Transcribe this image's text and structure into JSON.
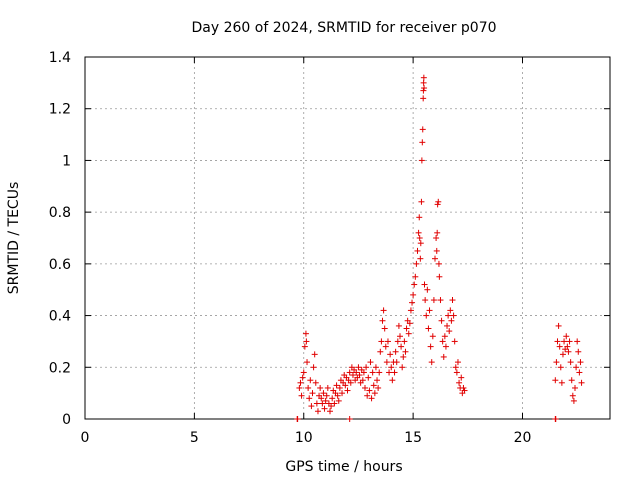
{
  "chart_data": {
    "type": "scatter",
    "title": "Day 260 of 2024, SRMTID for receiver p070",
    "xlabel": "GPS time / hours",
    "ylabel": "SRMTID / TECUs",
    "xlim": [
      0,
      24
    ],
    "ylim": [
      0,
      1.4
    ],
    "xticks": [
      0,
      5,
      10,
      15,
      20
    ],
    "xtick_labels": [
      "0",
      "5",
      "10",
      "15",
      "20"
    ],
    "yticks": [
      0,
      0.2,
      0.4,
      0.6,
      0.8,
      1.0,
      1.2,
      1.4
    ],
    "ytick_labels": [
      "0",
      "0.2",
      "0.4",
      "0.6",
      "0.8",
      "1",
      "1.2",
      "1.4"
    ],
    "grid": true,
    "marker": "+",
    "color": "#e00000",
    "series": [
      {
        "name": "SRMTID",
        "points": [
          [
            9.7,
            0.0
          ],
          [
            9.72,
            0.0
          ],
          [
            21.5,
            0.0
          ],
          [
            21.52,
            0.0
          ],
          [
            12.1,
            0.0
          ],
          [
            9.8,
            0.12
          ],
          [
            9.85,
            0.14
          ],
          [
            9.9,
            0.09
          ],
          [
            9.95,
            0.16
          ],
          [
            10.0,
            0.18
          ],
          [
            10.05,
            0.28
          ],
          [
            10.1,
            0.33
          ],
          [
            10.12,
            0.3
          ],
          [
            10.15,
            0.22
          ],
          [
            10.2,
            0.12
          ],
          [
            10.25,
            0.08
          ],
          [
            10.3,
            0.15
          ],
          [
            10.35,
            0.05
          ],
          [
            10.4,
            0.1
          ],
          [
            10.45,
            0.2
          ],
          [
            10.5,
            0.25
          ],
          [
            10.55,
            0.14
          ],
          [
            10.6,
            0.06
          ],
          [
            10.65,
            0.03
          ],
          [
            10.7,
            0.09
          ],
          [
            10.75,
            0.12
          ],
          [
            10.8,
            0.08
          ],
          [
            10.85,
            0.06
          ],
          [
            10.9,
            0.1
          ],
          [
            10.95,
            0.04
          ],
          [
            11.0,
            0.07
          ],
          [
            11.05,
            0.09
          ],
          [
            11.1,
            0.12
          ],
          [
            11.15,
            0.06
          ],
          [
            11.2,
            0.03
          ],
          [
            11.25,
            0.05
          ],
          [
            11.3,
            0.08
          ],
          [
            11.35,
            0.11
          ],
          [
            11.4,
            0.06
          ],
          [
            11.45,
            0.1
          ],
          [
            11.5,
            0.13
          ],
          [
            11.55,
            0.09
          ],
          [
            11.6,
            0.07
          ],
          [
            11.65,
            0.12
          ],
          [
            11.7,
            0.15
          ],
          [
            11.75,
            0.1
          ],
          [
            11.8,
            0.14
          ],
          [
            11.85,
            0.17
          ],
          [
            11.9,
            0.13
          ],
          [
            11.95,
            0.16
          ],
          [
            12.0,
            0.11
          ],
          [
            12.05,
            0.15
          ],
          [
            12.1,
            0.18
          ],
          [
            12.15,
            0.14
          ],
          [
            12.2,
            0.2
          ],
          [
            12.25,
            0.17
          ],
          [
            12.3,
            0.19
          ],
          [
            12.35,
            0.15
          ],
          [
            12.4,
            0.18
          ],
          [
            12.45,
            0.16
          ],
          [
            12.5,
            0.2
          ],
          [
            12.55,
            0.17
          ],
          [
            12.6,
            0.14
          ],
          [
            12.65,
            0.19
          ],
          [
            12.7,
            0.15
          ],
          [
            12.75,
            0.18
          ],
          [
            12.8,
            0.12
          ],
          [
            12.85,
            0.2
          ],
          [
            12.9,
            0.09
          ],
          [
            12.95,
            0.16
          ],
          [
            13.0,
            0.11
          ],
          [
            13.05,
            0.22
          ],
          [
            13.1,
            0.08
          ],
          [
            13.15,
            0.18
          ],
          [
            13.2,
            0.13
          ],
          [
            13.25,
            0.1
          ],
          [
            13.3,
            0.2
          ],
          [
            13.35,
            0.15
          ],
          [
            13.4,
            0.12
          ],
          [
            13.45,
            0.18
          ],
          [
            13.5,
            0.26
          ],
          [
            13.55,
            0.3
          ],
          [
            13.6,
            0.38
          ],
          [
            13.65,
            0.42
          ],
          [
            13.7,
            0.35
          ],
          [
            13.75,
            0.28
          ],
          [
            13.8,
            0.22
          ],
          [
            13.85,
            0.3
          ],
          [
            13.9,
            0.18
          ],
          [
            13.95,
            0.25
          ],
          [
            14.0,
            0.2
          ],
          [
            14.05,
            0.15
          ],
          [
            14.1,
            0.22
          ],
          [
            14.15,
            0.18
          ],
          [
            14.2,
            0.26
          ],
          [
            14.25,
            0.22
          ],
          [
            14.3,
            0.3
          ],
          [
            14.35,
            0.36
          ],
          [
            14.4,
            0.32
          ],
          [
            14.45,
            0.28
          ],
          [
            14.5,
            0.2
          ],
          [
            14.55,
            0.24
          ],
          [
            14.6,
            0.3
          ],
          [
            14.65,
            0.26
          ],
          [
            14.7,
            0.35
          ],
          [
            14.75,
            0.38
          ],
          [
            14.8,
            0.33
          ],
          [
            14.85,
            0.37
          ],
          [
            14.9,
            0.42
          ],
          [
            14.95,
            0.45
          ],
          [
            15.0,
            0.48
          ],
          [
            15.05,
            0.52
          ],
          [
            15.1,
            0.55
          ],
          [
            15.15,
            0.6
          ],
          [
            15.2,
            0.65
          ],
          [
            15.25,
            0.72
          ],
          [
            15.28,
            0.78
          ],
          [
            15.3,
            0.7
          ],
          [
            15.33,
            0.62
          ],
          [
            15.35,
            0.68
          ],
          [
            15.38,
            0.84
          ],
          [
            15.4,
            1.0
          ],
          [
            15.42,
            1.07
          ],
          [
            15.44,
            1.12
          ],
          [
            15.46,
            1.24
          ],
          [
            15.47,
            1.27
          ],
          [
            15.48,
            1.3
          ],
          [
            15.49,
            1.32
          ],
          [
            15.5,
            1.28
          ],
          [
            15.52,
            0.52
          ],
          [
            15.55,
            0.46
          ],
          [
            15.6,
            0.4
          ],
          [
            15.65,
            0.5
          ],
          [
            15.7,
            0.35
          ],
          [
            15.75,
            0.42
          ],
          [
            15.8,
            0.28
          ],
          [
            15.85,
            0.22
          ],
          [
            15.9,
            0.32
          ],
          [
            15.95,
            0.46
          ],
          [
            16.0,
            0.62
          ],
          [
            16.05,
            0.7
          ],
          [
            16.08,
            0.65
          ],
          [
            16.1,
            0.72
          ],
          [
            16.12,
            0.83
          ],
          [
            16.15,
            0.84
          ],
          [
            16.18,
            0.6
          ],
          [
            16.2,
            0.55
          ],
          [
            16.25,
            0.46
          ],
          [
            16.3,
            0.38
          ],
          [
            16.35,
            0.3
          ],
          [
            16.4,
            0.24
          ],
          [
            16.45,
            0.32
          ],
          [
            16.5,
            0.28
          ],
          [
            16.55,
            0.36
          ],
          [
            16.6,
            0.4
          ],
          [
            16.65,
            0.34
          ],
          [
            16.7,
            0.42
          ],
          [
            16.75,
            0.38
          ],
          [
            16.8,
            0.46
          ],
          [
            16.85,
            0.4
          ],
          [
            16.9,
            0.3
          ],
          [
            16.95,
            0.2
          ],
          [
            17.0,
            0.18
          ],
          [
            17.05,
            0.22
          ],
          [
            17.1,
            0.14
          ],
          [
            17.15,
            0.12
          ],
          [
            17.2,
            0.16
          ],
          [
            17.25,
            0.1
          ],
          [
            17.3,
            0.12
          ],
          [
            17.35,
            0.11
          ],
          [
            21.5,
            0.15
          ],
          [
            21.55,
            0.22
          ],
          [
            21.6,
            0.3
          ],
          [
            21.65,
            0.36
          ],
          [
            21.7,
            0.28
          ],
          [
            21.75,
            0.2
          ],
          [
            21.8,
            0.14
          ],
          [
            21.85,
            0.25
          ],
          [
            21.9,
            0.3
          ],
          [
            21.95,
            0.27
          ],
          [
            22.0,
            0.32
          ],
          [
            22.05,
            0.28
          ],
          [
            22.1,
            0.26
          ],
          [
            22.15,
            0.3
          ],
          [
            22.2,
            0.22
          ],
          [
            22.25,
            0.15
          ],
          [
            22.3,
            0.09
          ],
          [
            22.35,
            0.07
          ],
          [
            22.4,
            0.12
          ],
          [
            22.45,
            0.2
          ],
          [
            22.5,
            0.3
          ],
          [
            22.55,
            0.26
          ],
          [
            22.6,
            0.18
          ],
          [
            22.65,
            0.22
          ],
          [
            22.7,
            0.14
          ]
        ]
      }
    ]
  }
}
